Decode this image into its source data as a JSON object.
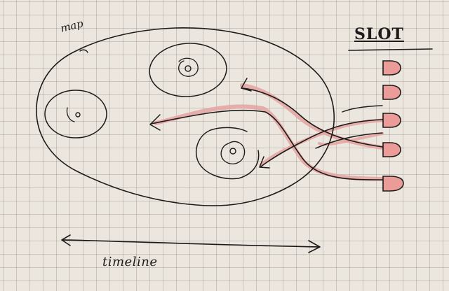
{
  "labels": {
    "map": "map",
    "slot": "SLOT",
    "timeline": "timeline"
  },
  "colors": {
    "paper": "#ebe6de",
    "grid": "#8a7f74",
    "ink": "#1e1c1a",
    "highlight": "#e5a3a1",
    "slot_fill": "#ec9c98"
  },
  "diagram": {
    "map_outline": "closed-loop",
    "map_targets": 3,
    "slot_count": 5,
    "connector_count": 5,
    "timeline_arrow": "double-headed"
  }
}
